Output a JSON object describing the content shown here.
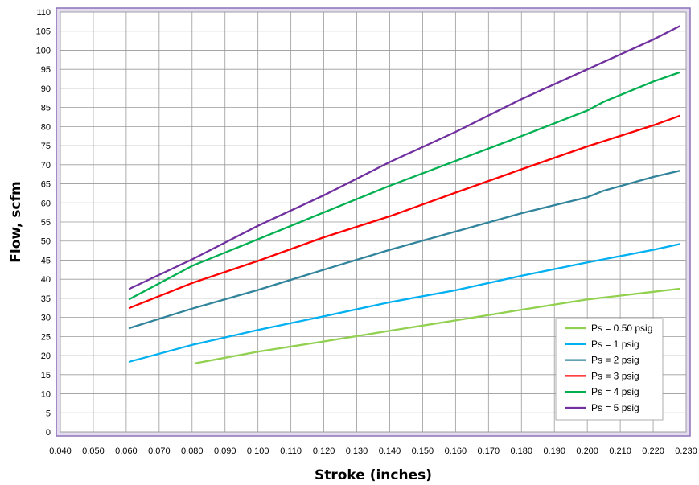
{
  "chart_data": {
    "type": "line",
    "title": "",
    "xlabel": "Stroke (inches)",
    "ylabel": "Flow, scfm",
    "xlim": [
      0.04,
      0.23
    ],
    "ylim": [
      0,
      110
    ],
    "x_ticks": [
      "0.040",
      "0.050",
      "0.060",
      "0.070",
      "0.080",
      "0.090",
      "0.100",
      "0.110",
      "0.120",
      "0.130",
      "0.140",
      "0.150",
      "0.160",
      "0.170",
      "0.180",
      "0.190",
      "0.200",
      "0.210",
      "0.220",
      "0.230"
    ],
    "y_ticks": [
      "0",
      "5",
      "10",
      "15",
      "20",
      "25",
      "30",
      "35",
      "40",
      "45",
      "50",
      "55",
      "60",
      "65",
      "70",
      "75",
      "80",
      "85",
      "90",
      "95",
      "100",
      "105",
      "110"
    ],
    "grid": true,
    "legend_position": "bottom-right",
    "colors": {
      "plot_border": "#8e72b8",
      "plot_background": "#ffffff",
      "outer_band": "#e3dcef",
      "grid": "#9a9a9a"
    },
    "series": [
      {
        "name": "Ps = 0.50 psig",
        "color": "#92d050",
        "x": [
          0.081,
          0.1,
          0.12,
          0.14,
          0.16,
          0.18,
          0.2,
          0.22,
          0.228
        ],
        "y": [
          18,
          21,
          23.7,
          26.5,
          29.2,
          32,
          34.7,
          36.7,
          37.5
        ]
      },
      {
        "name": "Ps = 1 psig",
        "color": "#00b0f0",
        "x": [
          0.061,
          0.08,
          0.1,
          0.12,
          0.14,
          0.16,
          0.18,
          0.2,
          0.22,
          0.228
        ],
        "y": [
          18.4,
          22.8,
          26.7,
          30.3,
          34,
          37.1,
          40.9,
          44.4,
          47.7,
          49.2
        ]
      },
      {
        "name": "Ps = 2 psig",
        "color": "#31849b",
        "x": [
          0.061,
          0.08,
          0.1,
          0.12,
          0.14,
          0.16,
          0.18,
          0.2,
          0.205,
          0.22,
          0.228
        ],
        "y": [
          27.2,
          32.3,
          37.2,
          42.5,
          47.7,
          52.5,
          57.3,
          61.5,
          63.2,
          66.8,
          68.4
        ]
      },
      {
        "name": "Ps = 3 psig",
        "color": "#ff0000",
        "x": [
          0.061,
          0.08,
          0.1,
          0.12,
          0.14,
          0.16,
          0.18,
          0.2,
          0.22,
          0.228
        ],
        "y": [
          32.5,
          39,
          44.8,
          51,
          56.5,
          62.7,
          68.8,
          74.8,
          80.3,
          82.8
        ]
      },
      {
        "name": "Ps = 4 psig",
        "color": "#00b050",
        "x": [
          0.061,
          0.08,
          0.1,
          0.12,
          0.14,
          0.16,
          0.18,
          0.2,
          0.205,
          0.22,
          0.228
        ],
        "y": [
          34.8,
          43.5,
          50.5,
          57.5,
          64.5,
          71,
          77.5,
          84.2,
          86.5,
          91.8,
          94.2
        ]
      },
      {
        "name": "Ps = 5 psig",
        "color": "#7030a0",
        "x": [
          0.061,
          0.08,
          0.1,
          0.12,
          0.14,
          0.16,
          0.18,
          0.2,
          0.22,
          0.228
        ],
        "y": [
          37.5,
          45.2,
          54,
          62,
          70.7,
          78.6,
          87.2,
          95,
          102.8,
          106.3
        ]
      }
    ]
  }
}
